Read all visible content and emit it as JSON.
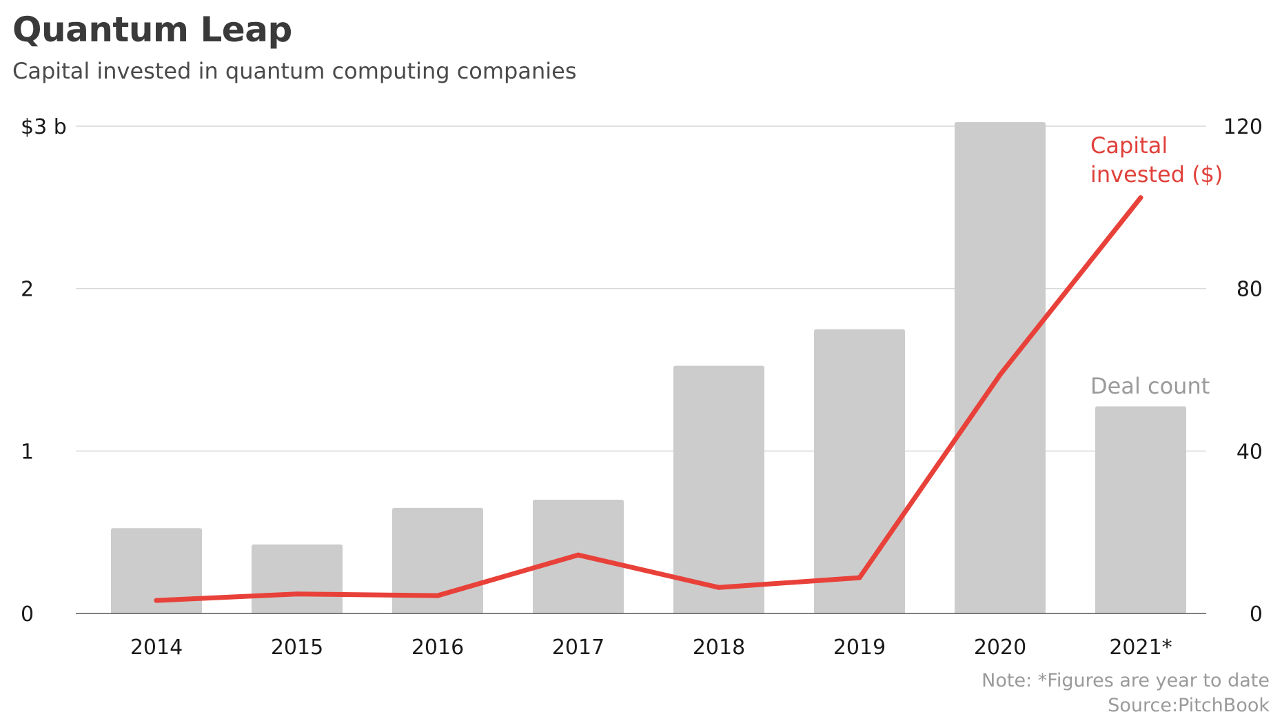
{
  "title": "Quantum Leap",
  "subtitle": "Capital invested in quantum computing companies",
  "note": "Note: *Figures are year to date",
  "source": "Source:PitchBook",
  "colors": {
    "bar": "#cccccc",
    "line": "#e8413a",
    "grid": "#d9d9d9",
    "axis": "#555555",
    "line_label": "#e0403a",
    "bar_label": "#9a9a9a"
  },
  "chart_data": {
    "type": "bar+line",
    "categories": [
      "2014",
      "2015",
      "2016",
      "2017",
      "2018",
      "2019",
      "2020",
      "2021*"
    ],
    "series": [
      {
        "name": "Deal count",
        "type": "bar",
        "axis": "right",
        "values": [
          21,
          17,
          26,
          28,
          61,
          70,
          121,
          51
        ]
      },
      {
        "name": "Capital invested ($)",
        "type": "line",
        "axis": "left",
        "values": [
          0.08,
          0.12,
          0.11,
          0.36,
          0.16,
          0.22,
          1.47,
          2.56
        ]
      }
    ],
    "left_axis": {
      "ylim": [
        0,
        3
      ],
      "ticks": [
        0,
        1,
        2,
        3
      ],
      "tick_labels": [
        "0",
        "1",
        "2",
        "$3 b"
      ]
    },
    "right_axis": {
      "ylim": [
        0,
        120
      ],
      "ticks": [
        0,
        40,
        80,
        120
      ],
      "tick_labels": [
        "0",
        "40",
        "80",
        "120"
      ]
    },
    "labels": {
      "line": [
        "Capital",
        "invested ($)"
      ],
      "bar": "Deal count"
    },
    "grid": true,
    "legend": "inline"
  }
}
